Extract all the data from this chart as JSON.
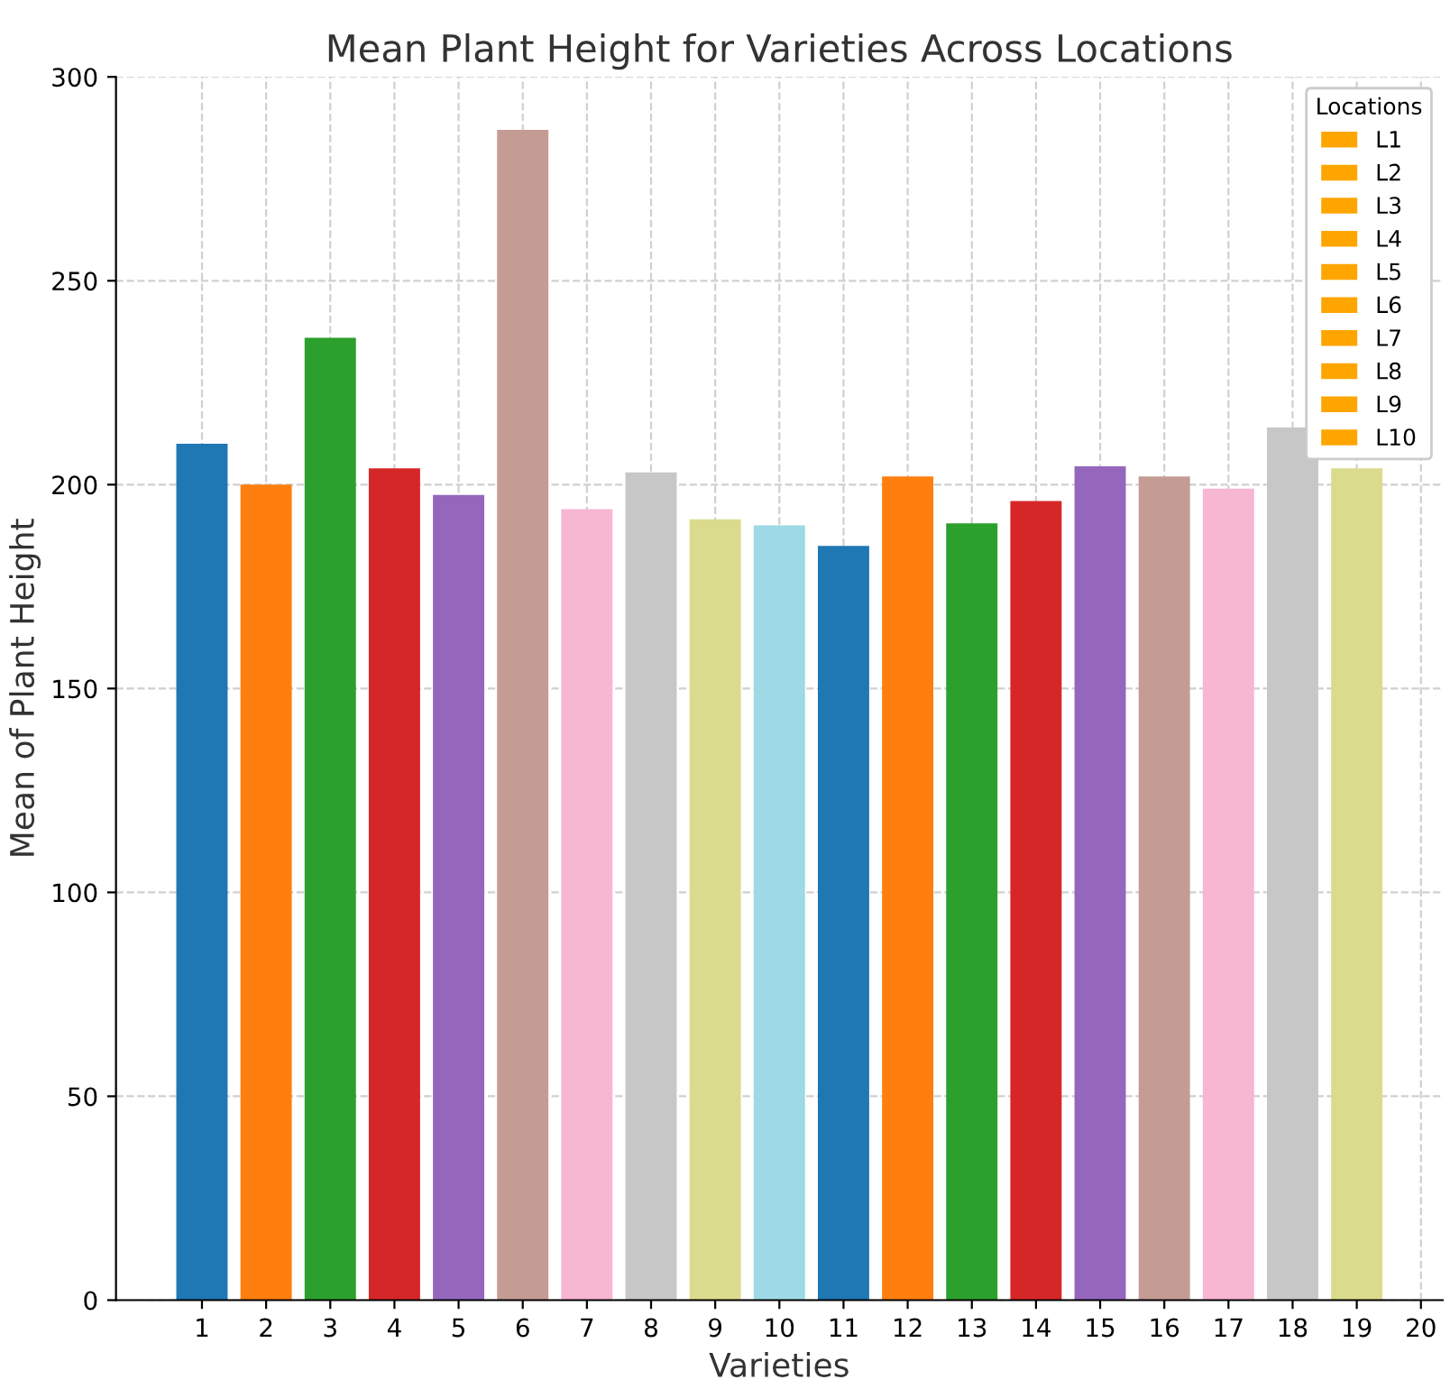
{
  "chart_data": {
    "type": "bar",
    "title": "Mean Plant Height for Varieties Across Locations",
    "xlabel": "Varieties",
    "ylabel": "Mean of Plant Height",
    "categories": [
      "1",
      "2",
      "3",
      "4",
      "5",
      "6",
      "7",
      "8",
      "9",
      "10",
      "11",
      "12",
      "13",
      "14",
      "15",
      "16",
      "17",
      "18",
      "19",
      "20"
    ],
    "ylim": [
      0,
      300
    ],
    "yticks": [
      0,
      50,
      100,
      150,
      200,
      250,
      300
    ],
    "grid": true,
    "legend": "top right",
    "legend_title": "Locations",
    "series": [
      {
        "values": [
          210,
          200,
          236,
          204,
          197.5,
          287,
          194,
          203,
          191.5,
          190,
          185,
          202,
          190.5,
          196,
          204.5,
          202,
          199,
          214,
          204,
          null
        ],
        "colors": [
          "#1f77b4",
          "#ff7f0e",
          "#2ca02c",
          "#d62728",
          "#9467bd",
          "#c49c94",
          "#f7b6d2",
          "#c7c7c7",
          "#dbdb8d",
          "#9edae5",
          "#1f77b4",
          "#ff7f0e",
          "#2ca02c",
          "#d62728",
          "#9467bd",
          "#c49c94",
          "#f7b6d2",
          "#c7c7c7",
          "#dbdb8d",
          "#9edae5"
        ]
      },
      {
        "name": "L1",
        "color": "#ffa500",
        "values": [
          null,
          null,
          null,
          null,
          null,
          null,
          null,
          null,
          null,
          null,
          null,
          null,
          null,
          null,
          null,
          null,
          null,
          null,
          null,
          null
        ]
      },
      {
        "name": "L2",
        "color": "#ffa500",
        "values": [
          null,
          null,
          null,
          null,
          null,
          null,
          null,
          null,
          null,
          null,
          null,
          null,
          null,
          null,
          null,
          null,
          null,
          null,
          null,
          null
        ]
      },
      {
        "name": "L3",
        "color": "#ffa500",
        "values": [
          null,
          null,
          null,
          null,
          null,
          null,
          null,
          null,
          null,
          null,
          null,
          null,
          null,
          null,
          null,
          null,
          null,
          null,
          null,
          null
        ]
      },
      {
        "name": "L4",
        "color": "#ffa500",
        "values": [
          null,
          null,
          null,
          null,
          null,
          null,
          null,
          null,
          null,
          null,
          null,
          null,
          null,
          null,
          null,
          null,
          null,
          null,
          null,
          null
        ]
      },
      {
        "name": "L5",
        "color": "#ffa500",
        "values": [
          null,
          null,
          null,
          null,
          null,
          null,
          null,
          null,
          null,
          null,
          null,
          null,
          null,
          null,
          null,
          null,
          null,
          null,
          null,
          null
        ]
      },
      {
        "name": "L6",
        "color": "#ffa500",
        "values": [
          null,
          null,
          null,
          null,
          null,
          null,
          null,
          null,
          null,
          null,
          null,
          null,
          null,
          null,
          null,
          null,
          null,
          null,
          null,
          null
        ]
      },
      {
        "name": "L7",
        "color": "#ffa500",
        "values": [
          null,
          null,
          null,
          null,
          null,
          null,
          null,
          null,
          null,
          null,
          null,
          null,
          null,
          null,
          null,
          null,
          null,
          null,
          null,
          null
        ]
      },
      {
        "name": "L8",
        "color": "#ffa500",
        "values": [
          null,
          null,
          null,
          null,
          null,
          null,
          null,
          null,
          null,
          null,
          null,
          null,
          null,
          null,
          null,
          null,
          null,
          null,
          null,
          null
        ]
      },
      {
        "name": "L9",
        "color": "#ffa500",
        "values": [
          null,
          null,
          null,
          null,
          null,
          null,
          null,
          null,
          null,
          null,
          null,
          null,
          null,
          null,
          null,
          null,
          null,
          null,
          null,
          null
        ]
      },
      {
        "name": "L10",
        "color": "#ffa500",
        "values": [
          null,
          null,
          null,
          null,
          null,
          null,
          null,
          null,
          null,
          null,
          null,
          null,
          null,
          null,
          null,
          null,
          null,
          null,
          null,
          null
        ]
      }
    ]
  }
}
